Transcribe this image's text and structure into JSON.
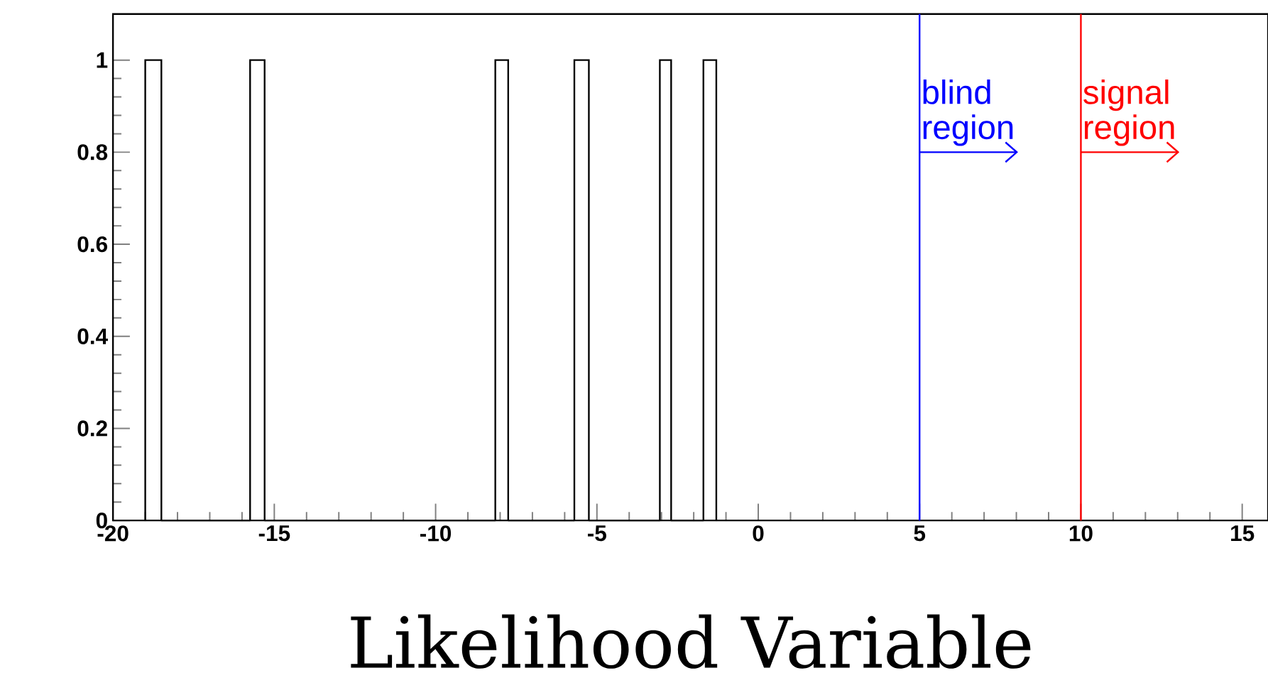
{
  "chart_data": {
    "type": "histogram",
    "xlabel": "Likelihood Variable",
    "bins": [
      -19,
      -18.5,
      -15.75,
      -15.3,
      -8.15,
      -7.75,
      -5.7,
      -5.25,
      -3.05,
      -2.7,
      -1.7,
      -1.3
    ],
    "values": [
      1,
      0,
      1,
      0,
      1,
      0,
      1,
      0,
      1,
      0,
      1
    ],
    "color": "#000000",
    "xlim": [
      -20,
      15.8
    ],
    "xticks": [
      -20,
      -15,
      -10,
      -5,
      0,
      5,
      10,
      15
    ],
    "ylim": [
      0,
      1.1
    ],
    "yticks": [
      0,
      0.2,
      0.4,
      0.6,
      0.8,
      1
    ],
    "ref_lines": [
      {
        "axis": "x",
        "value": 5,
        "label": "blind region",
        "color": "#0000ff"
      },
      {
        "axis": "x",
        "value": 10,
        "label": "signal region",
        "color": "#ff0000"
      }
    ],
    "grid": false
  }
}
